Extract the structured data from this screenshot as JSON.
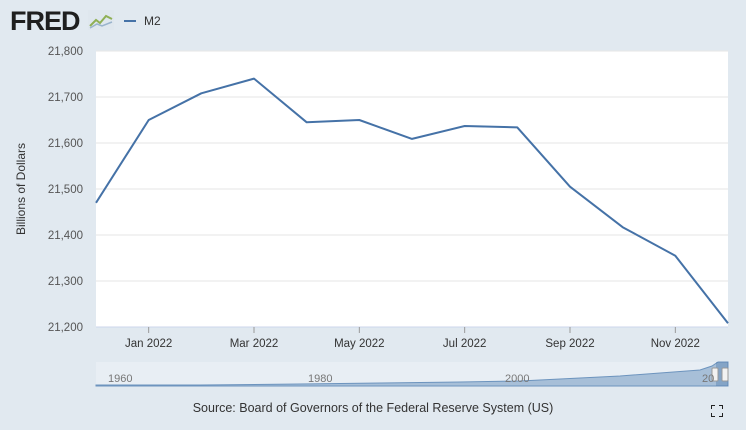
{
  "logo": {
    "text": "FRED"
  },
  "legend": {
    "series_name": "M2"
  },
  "source": "Source: Board of Governors of the Federal Reserve System (US)",
  "navigator": {
    "labels": [
      "1960",
      "1980",
      "2000",
      "20"
    ]
  },
  "colors": {
    "series": "#4572a7",
    "background": "#e1e9f0",
    "plot": "#ffffff",
    "grid": "#e6e6e6"
  },
  "chart_data": {
    "type": "line",
    "title": "",
    "xlabel": "",
    "ylabel": "Billions of Dollars",
    "ylim": [
      21200,
      21800
    ],
    "yticks": [
      21200,
      21300,
      21400,
      21500,
      21600,
      21700,
      21800
    ],
    "ytick_labels": [
      "21,200",
      "21,300",
      "21,400",
      "21,500",
      "21,600",
      "21,700",
      "21,800"
    ],
    "xtick_labels": [
      "Jan 2022",
      "Mar 2022",
      "May 2022",
      "Jul 2022",
      "Sep 2022",
      "Nov 2022"
    ],
    "xtick_indices": [
      1,
      3,
      5,
      7,
      9,
      11
    ],
    "series": [
      {
        "name": "M2",
        "x": [
          "Dec 2021",
          "Jan 2022",
          "Feb 2022",
          "Mar 2022",
          "Apr 2022",
          "May 2022",
          "Jun 2022",
          "Jul 2022",
          "Aug 2022",
          "Sep 2022",
          "Oct 2022",
          "Nov 2022",
          "Dec 2022"
        ],
        "values": [
          21470,
          21650,
          21708,
          21740,
          21645,
          21650,
          21609,
          21637,
          21634,
          21505,
          21417,
          21355,
          21208
        ]
      }
    ]
  }
}
